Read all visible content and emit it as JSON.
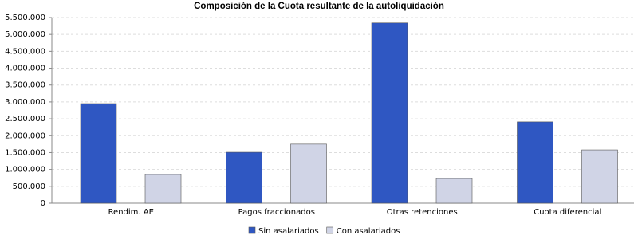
{
  "chart_data": {
    "type": "bar",
    "title": "Composición de la Cuota resultante de la autoliquidación",
    "categories": [
      "Rendim. AE",
      "Pagos fraccionados",
      "Otras retenciones",
      "Cuota diferencial"
    ],
    "series": [
      {
        "name": "Sin asalariados",
        "color": "#2f57c2",
        "values": [
          2950000,
          1510000,
          5340000,
          2410000
        ]
      },
      {
        "name": "Con asalariados",
        "color": "#d0d4e6",
        "values": [
          850000,
          1750000,
          730000,
          1580000
        ]
      }
    ],
    "ylim": [
      0,
      5500000
    ],
    "yticks": [
      0,
      {
        "value": 500000,
        "label": "500.000"
      },
      {
        "value": 1000000,
        "label": "1.000.000"
      },
      {
        "value": 1500000,
        "label": "1.500.000"
      },
      {
        "value": 2000000,
        "label": "2.000.000"
      },
      {
        "value": 2500000,
        "label": "2.500.000"
      },
      {
        "value": 3000000,
        "label": "3.000.000"
      },
      {
        "value": 3500000,
        "label": "3.500.000"
      },
      {
        "value": 4000000,
        "label": "4.000.000"
      },
      {
        "value": 4500000,
        "label": "4.500.000"
      },
      {
        "value": 5000000,
        "label": "5.000.000"
      },
      {
        "value": 5500000,
        "label": "5.500.000"
      }
    ],
    "grid": true,
    "legend": "bottom"
  }
}
